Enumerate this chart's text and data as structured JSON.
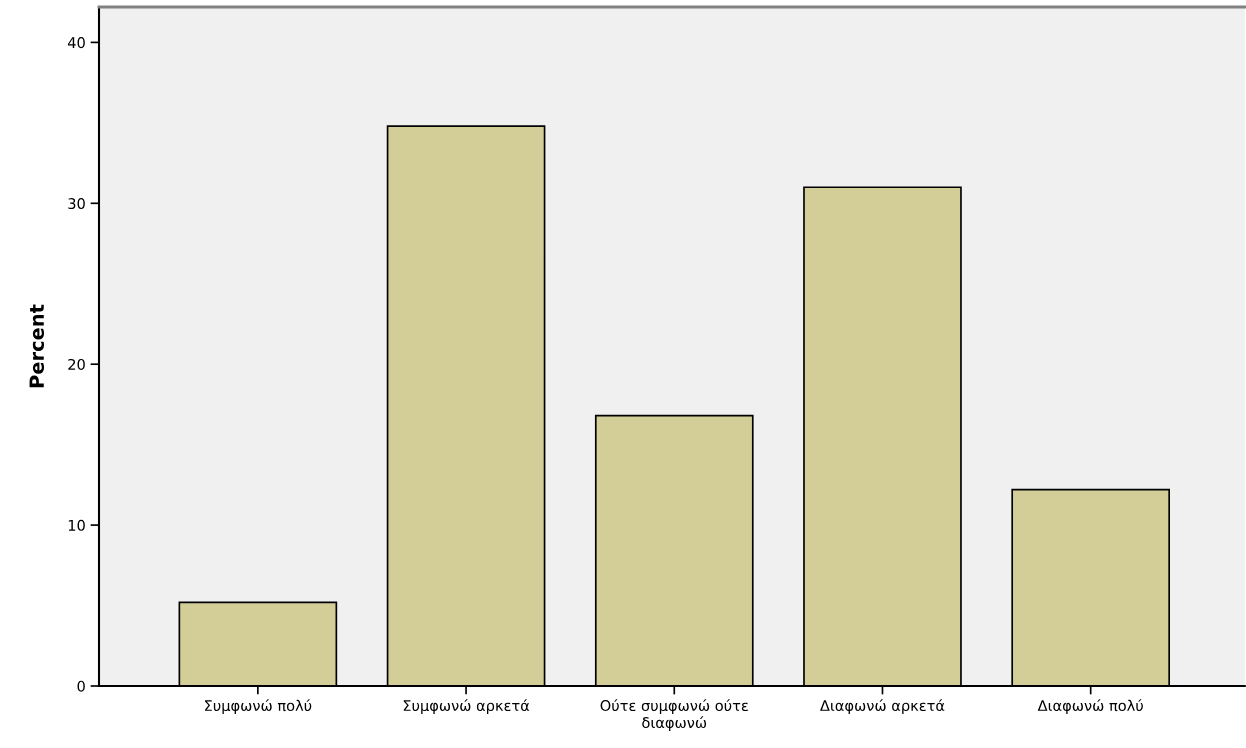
{
  "chart_data": {
    "type": "bar",
    "ylabel": "Percent",
    "categories": [
      "Συμφωνώ πολύ",
      "Συμφωνώ αρκετά",
      "Ούτε συμφωνώ ούτε\nδιαφωνώ",
      "Διαφωνώ αρκετά",
      "Διαφωνώ πολύ"
    ],
    "values": [
      5.2,
      34.8,
      16.8,
      31.0,
      12.2
    ],
    "color": "#d3ce97",
    "ylim": [
      0,
      42.2
    ],
    "yticks": [
      0,
      10,
      20,
      30,
      40
    ],
    "grid": false,
    "legend": false
  }
}
